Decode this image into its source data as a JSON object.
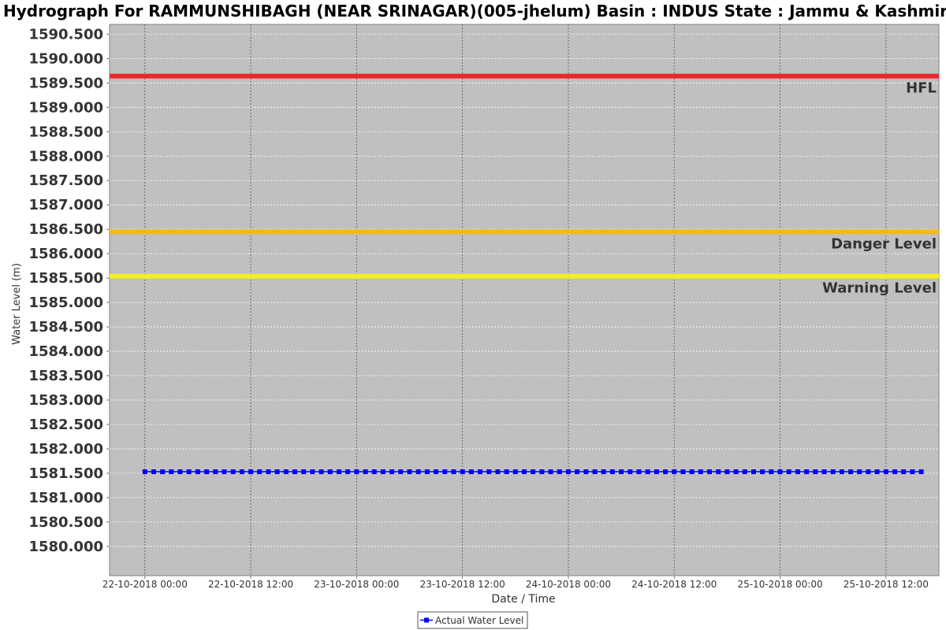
{
  "chart_data": {
    "type": "line",
    "title": "Hydrograph For RAMMUNSHIBAGH (NEAR SRINAGAR)(005-jhelum) Basin : INDUS State : Jammu & Kashmir",
    "xlabel": "Date / Time",
    "ylabel": "Water Level (m)",
    "ylim": [
      1579.4,
      1590.7
    ],
    "xlim": [
      "2018-10-21 20:00",
      "2018-10-25 18:00"
    ],
    "grid": true,
    "y_ticks": [
      "1580.000",
      "1580.500",
      "1581.000",
      "1581.500",
      "1582.000",
      "1582.500",
      "1583.000",
      "1583.500",
      "1584.000",
      "1584.500",
      "1585.000",
      "1585.500",
      "1586.000",
      "1586.500",
      "1587.000",
      "1587.500",
      "1588.000",
      "1588.500",
      "1589.000",
      "1589.500",
      "1590.000",
      "1590.500"
    ],
    "x_ticks": [
      {
        "label": "22-10-2018 00:00",
        "value": "2018-10-22 00:00"
      },
      {
        "label": "22-10-2018 12:00",
        "value": "2018-10-22 12:00"
      },
      {
        "label": "23-10-2018 00:00",
        "value": "2018-10-23 00:00"
      },
      {
        "label": "23-10-2018 12:00",
        "value": "2018-10-23 12:00"
      },
      {
        "label": "24-10-2018 00:00",
        "value": "2018-10-24 00:00"
      },
      {
        "label": "24-10-2018 12:00",
        "value": "2018-10-24 12:00"
      },
      {
        "label": "25-10-2018 00:00",
        "value": "2018-10-25 00:00"
      },
      {
        "label": "25-10-2018 12:00",
        "value": "2018-10-25 12:00"
      }
    ],
    "reference_lines": [
      {
        "label": "HFL",
        "value": 1589.64,
        "color": "#e8282a"
      },
      {
        "label": "Danger Level",
        "value": 1586.45,
        "color": "#f2b81e"
      },
      {
        "label": "Warning Level",
        "value": 1585.54,
        "color": "#f4f01e"
      }
    ],
    "series": [
      {
        "name": "Actual Water Level",
        "color": "#0000ff",
        "start": "2018-10-22 00:00",
        "end": "2018-10-25 16:00",
        "interval_hours": 1,
        "value": 1581.53
      }
    ],
    "legend_position": "bottom-center",
    "background_color": "#c0c0c0"
  }
}
